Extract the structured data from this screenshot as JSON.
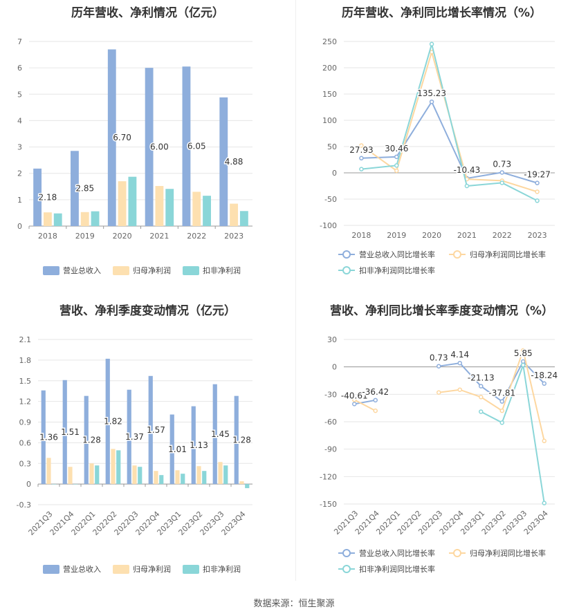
{
  "colors": {
    "revenue_bar": "#8eaedc",
    "net_profit_bar": "#fde0b0",
    "deducted_bar": "#8ad6d8",
    "revenue_line": "#8eaedc",
    "net_profit_line": "#fdd7a0",
    "deducted_line": "#8ad6d8"
  },
  "source": "数据来源：恒生聚源",
  "chart_data": [
    {
      "id": "annual-bars",
      "type": "bar",
      "title": "历年营收、净利情况（亿元）",
      "categories": [
        "2018",
        "2019",
        "2020",
        "2021",
        "2022",
        "2023"
      ],
      "ylim": [
        0,
        7
      ],
      "yticks": [
        "0",
        "1",
        "2",
        "3",
        "4",
        "5",
        "6",
        "7"
      ],
      "ytick_values": [
        0,
        1,
        2,
        3,
        4,
        5,
        6,
        7
      ],
      "series": [
        {
          "name": "营业总收入",
          "values": [
            2.18,
            2.85,
            6.7,
            6.0,
            6.05,
            4.88
          ],
          "labels": [
            "2.18",
            "2.85",
            "6.70",
            "6.00",
            "6.05",
            "4.88"
          ]
        },
        {
          "name": "归母净利润",
          "values": [
            0.52,
            0.53,
            1.7,
            1.52,
            1.3,
            0.85
          ]
        },
        {
          "name": "扣非净利润",
          "values": [
            0.48,
            0.56,
            1.87,
            1.41,
            1.15,
            0.57
          ]
        }
      ],
      "legend": "bottom",
      "grid": true
    },
    {
      "id": "annual-lines",
      "type": "line",
      "title": "历年营收、净利同比增长率情况（%）",
      "categories": [
        "2018",
        "2019",
        "2020",
        "2021",
        "2022",
        "2023"
      ],
      "ylim": [
        -100,
        250
      ],
      "yticks": [
        "-100",
        "-50",
        "0",
        "50",
        "100",
        "150",
        "200",
        "250"
      ],
      "ytick_values": [
        -100,
        -50,
        0,
        50,
        100,
        150,
        200,
        250
      ],
      "series": [
        {
          "name": "营业总收入同比增长率",
          "values": [
            27.93,
            30.46,
            135.23,
            -10.43,
            0.73,
            -19.27
          ],
          "labels": [
            "27.93",
            "30.46",
            "135.23",
            "-10.43",
            "0.73",
            "-19.27"
          ]
        },
        {
          "name": "归母净利润同比增长率",
          "values": [
            52,
            4,
            230,
            -12,
            -15,
            -36
          ]
        },
        {
          "name": "扣非净利润同比增长率",
          "values": [
            7,
            14,
            245,
            -25,
            -19,
            -53
          ]
        }
      ],
      "legend": "bottom",
      "grid": true
    },
    {
      "id": "quarterly-bars",
      "type": "bar",
      "title": "营收、净利季度变动情况（亿元）",
      "categories": [
        "2021Q3",
        "2021Q4",
        "2022Q1",
        "2022Q2",
        "2022Q3",
        "2022Q4",
        "2023Q1",
        "2023Q2",
        "2023Q3",
        "2023Q4"
      ],
      "ylim": [
        -0.3,
        2.1
      ],
      "yticks": [
        "-0.3",
        "0",
        "0.3",
        "0.6",
        "0.9",
        "1.2",
        "1.5",
        "1.8",
        "2.1"
      ],
      "ytick_values": [
        -0.3,
        0,
        0.3,
        0.6,
        0.9,
        1.2,
        1.5,
        1.8,
        2.1
      ],
      "series": [
        {
          "name": "营业总收入",
          "values": [
            1.36,
            1.51,
            1.28,
            1.82,
            1.37,
            1.57,
            1.01,
            1.13,
            1.45,
            1.28
          ],
          "labels": [
            "1.36",
            "1.51",
            "1.28",
            "1.82",
            "1.37",
            "1.57",
            "1.01",
            "1.13",
            "1.45",
            "1.28"
          ]
        },
        {
          "name": "归母净利润",
          "values": [
            0.38,
            0.25,
            0.3,
            0.51,
            0.27,
            0.19,
            0.2,
            0.26,
            0.32,
            0.04
          ]
        },
        {
          "name": "扣非净利润",
          "values": [
            0.0,
            0.0,
            0.27,
            0.49,
            0.25,
            0.13,
            0.15,
            0.19,
            0.27,
            -0.06
          ]
        }
      ],
      "legend": "bottom",
      "grid": true
    },
    {
      "id": "quarterly-lines",
      "type": "line",
      "title": "营收、净利同比增长率季度变动情况（%）",
      "categories": [
        "2021Q3",
        "2021Q4",
        "2022Q1",
        "2022Q2",
        "2022Q3",
        "2022Q4",
        "2023Q1",
        "2023Q2",
        "2023Q3",
        "2023Q4"
      ],
      "ylim": [
        -150,
        30
      ],
      "yticks": [
        "-150",
        "-120",
        "-90",
        "-60",
        "-30",
        "0",
        "30"
      ],
      "ytick_values": [
        -150,
        -120,
        -90,
        -60,
        -30,
        0,
        30
      ],
      "series": [
        {
          "name": "营业总收入同比增长率",
          "values": [
            -40.61,
            -36.42,
            null,
            null,
            0.73,
            4.14,
            -21.13,
            -37.81,
            5.85,
            -18.24
          ],
          "labels": [
            "-40.61",
            "-36.42",
            "",
            "",
            "0.73",
            "4.14",
            "-21.13",
            "-37.81",
            "5.85",
            "-18.24"
          ]
        },
        {
          "name": "归母净利润同比增长率",
          "values": [
            -36,
            -48,
            null,
            null,
            -28,
            -25,
            -33,
            -48,
            18,
            -81
          ]
        },
        {
          "name": "扣非净利润同比增长率",
          "values": [
            null,
            null,
            null,
            null,
            null,
            null,
            -49,
            -61,
            2,
            -149
          ]
        }
      ],
      "legend": "bottom",
      "grid": true
    }
  ]
}
